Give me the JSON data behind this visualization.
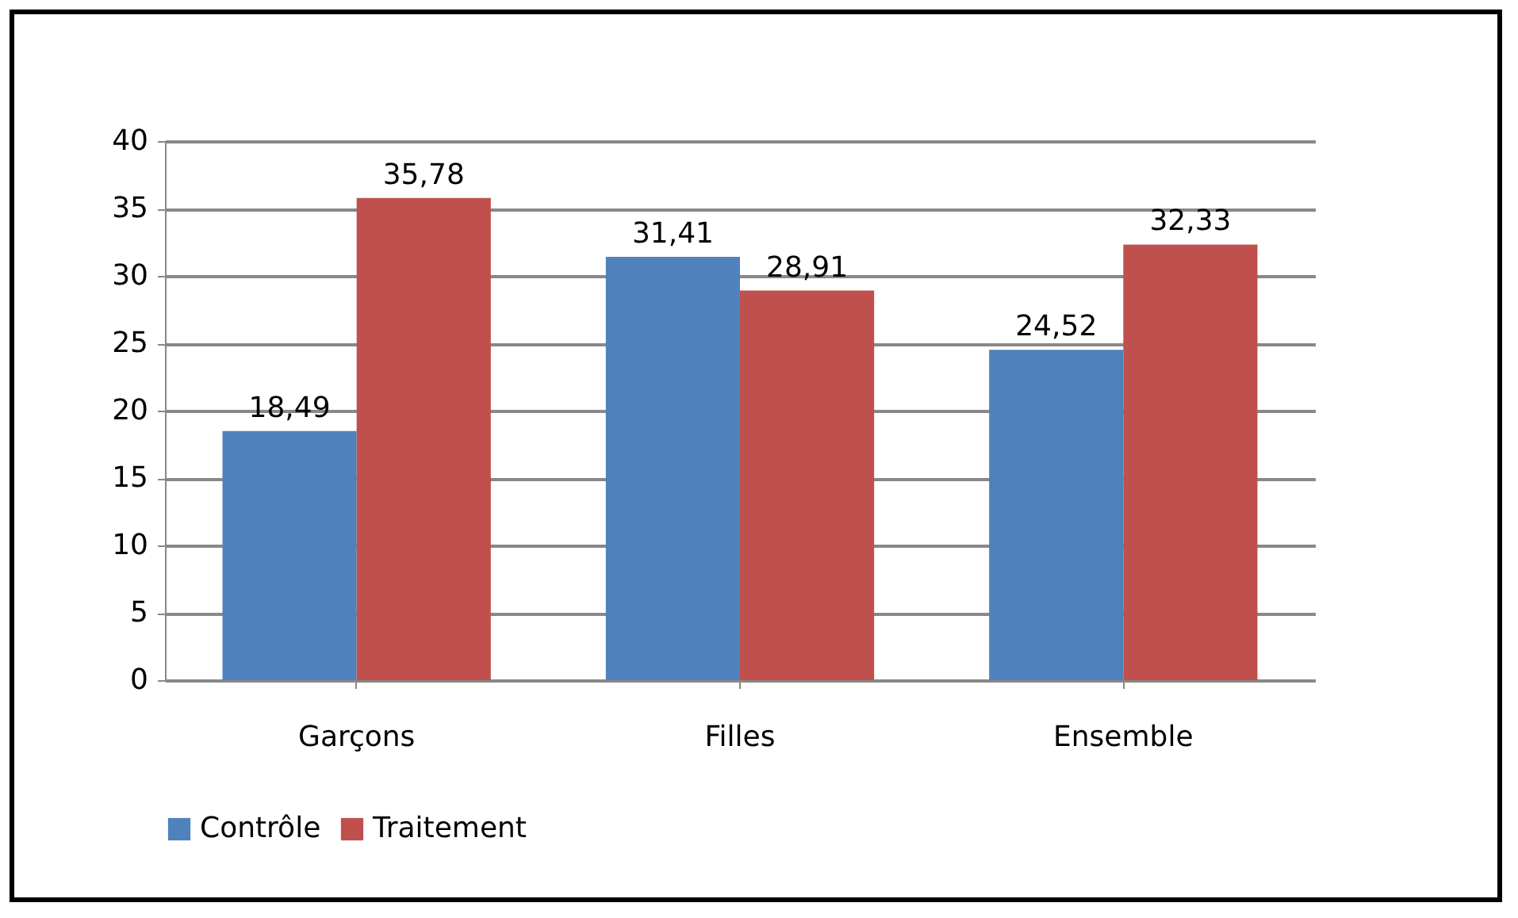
{
  "chart_data": {
    "type": "bar",
    "categories": [
      "Garçons",
      "Filles",
      "Ensemble"
    ],
    "series": [
      {
        "name": "Contrôle",
        "color": "#4f81bd",
        "values": [
          18.49,
          31.41,
          24.52
        ],
        "value_labels": [
          "18,49",
          "31,41",
          "24,52"
        ]
      },
      {
        "name": "Traitement",
        "color": "#c0504d",
        "values": [
          35.78,
          28.91,
          32.33
        ],
        "value_labels": [
          "35,78",
          "28,91",
          "32,33"
        ]
      }
    ],
    "ylim": [
      0,
      40
    ],
    "yticks": [
      0,
      5,
      10,
      15,
      20,
      25,
      30,
      35,
      40
    ],
    "grid": "y",
    "legend": "bottom"
  }
}
